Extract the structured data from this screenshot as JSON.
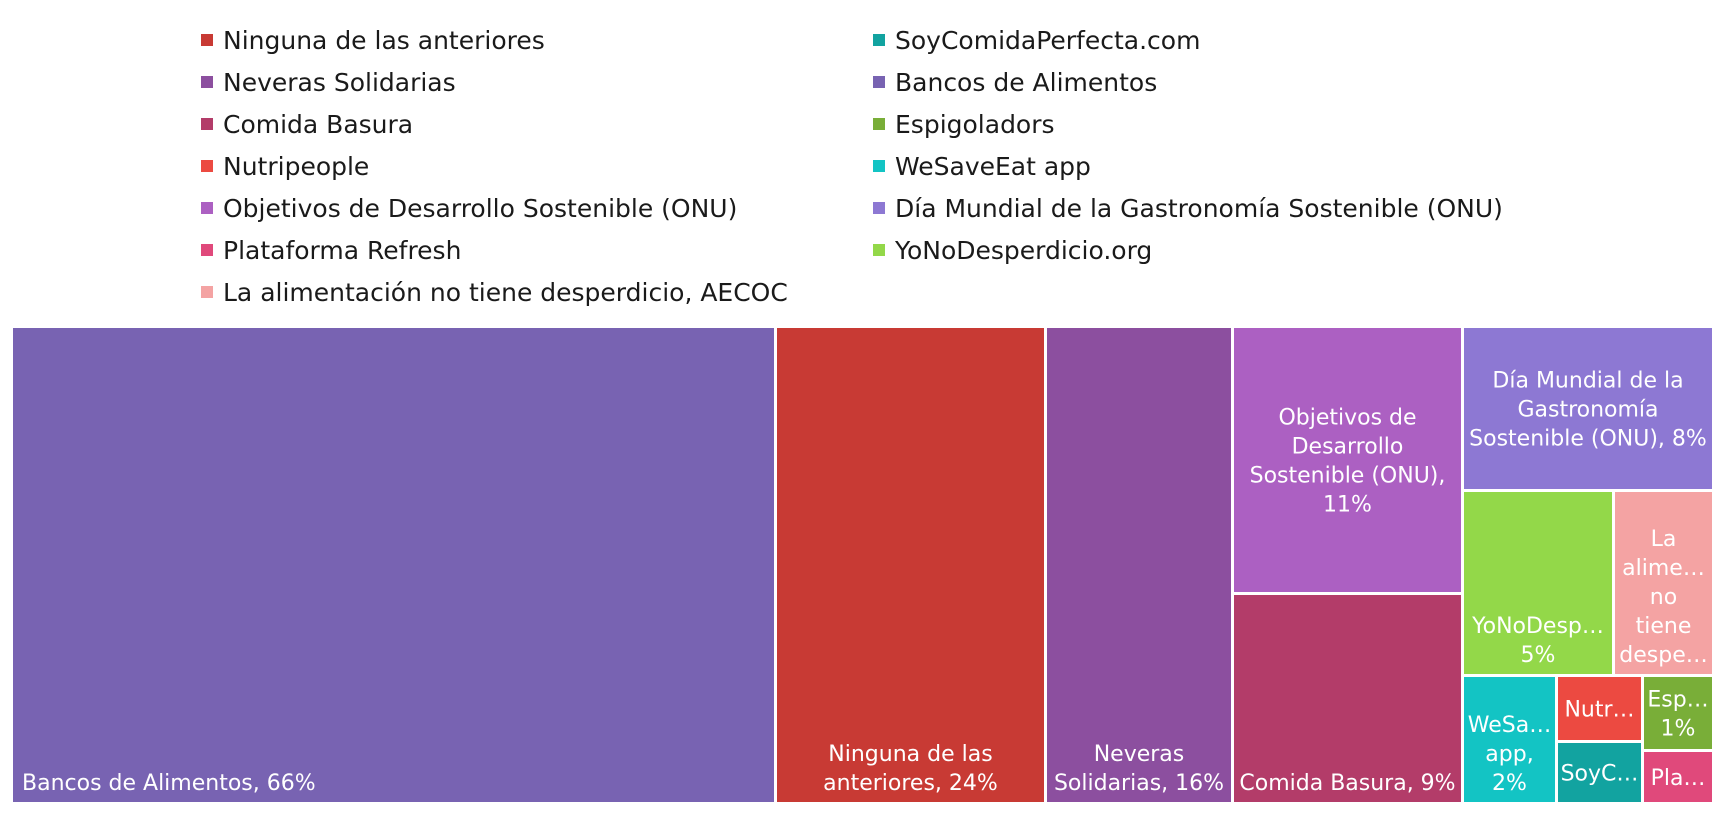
{
  "chart_data": {
    "type": "treemap",
    "legend_position": "top",
    "legend": [
      "Ninguna de las anteriores",
      "Neveras Solidarias",
      "Comida Basura",
      "Nutripeople",
      "Objetivos de Desarrollo Sostenible (ONU)",
      "Plataforma Refresh",
      "La alimentación no tiene desperdicio, AECOC",
      "SoyComidaPerfecta.com",
      "Bancos de Alimentos",
      "Espigoladors",
      "WeSaveEat app",
      "Día Mundial de la Gastronomía Sostenible (ONU)",
      "YoNoDesperdicio.org"
    ],
    "series": [
      {
        "name": "Bancos de Alimentos",
        "value": 66,
        "color": "#7863b2",
        "label_lines": [
          "Bancos de Alimentos, 66%"
        ]
      },
      {
        "name": "Ninguna de las anteriores",
        "value": 24,
        "color": "#c83a34",
        "label_lines": [
          "Ninguna de las",
          "anteriores, 24%"
        ]
      },
      {
        "name": "Neveras Solidarias",
        "value": 16,
        "color": "#8c4f9f",
        "label_lines": [
          "Neveras",
          "Solidarias, 16%"
        ]
      },
      {
        "name": "Objetivos de Desarrollo Sostenible (ONU)",
        "value": 11,
        "color": "#ac60c2",
        "label_lines": [
          "Objetivos de",
          "Desarrollo",
          "Sostenible (ONU),",
          "11%"
        ]
      },
      {
        "name": "Comida Basura",
        "value": 9,
        "color": "#b33c69",
        "label_lines": [
          "Comida Basura, 9%"
        ]
      },
      {
        "name": "Día Mundial de la Gastronomía Sostenible (ONU)",
        "value": 8,
        "color": "#8d78d3",
        "label_lines": [
          "Día Mundial de la",
          "Gastronomía",
          "Sostenible (ONU), 8%"
        ]
      },
      {
        "name": "YoNoDesperdicio.org",
        "value": 5,
        "color": "#93d849",
        "label_lines": [
          "YoNoDesp…",
          "5%"
        ]
      },
      {
        "name": "La alimentación no tiene desperdicio, AECOC",
        "value": 5,
        "color": "#f4a3a3",
        "label_lines": [
          "La",
          "alime…",
          "no",
          "tiene",
          "despe…"
        ]
      },
      {
        "name": "WeSaveEat app",
        "value": 2,
        "color": "#13c4c4",
        "label_lines": [
          "WeSa…",
          "app,",
          "2%"
        ]
      },
      {
        "name": "Nutripeople",
        "value": 2,
        "color": "#ec4a41",
        "label_lines": [
          "Nutr…"
        ]
      },
      {
        "name": "SoyComidaPerfecta.com",
        "value": 2,
        "color": "#12a3a0",
        "label_lines": [
          "SoyC…"
        ]
      },
      {
        "name": "Espigoladors",
        "value": 1,
        "color": "#79ae38",
        "label_lines": [
          "Esp…",
          "1%"
        ]
      },
      {
        "name": "Plataforma Refresh",
        "value": 1,
        "color": "#e0497b",
        "label_lines": [
          "Pla…"
        ]
      }
    ]
  }
}
